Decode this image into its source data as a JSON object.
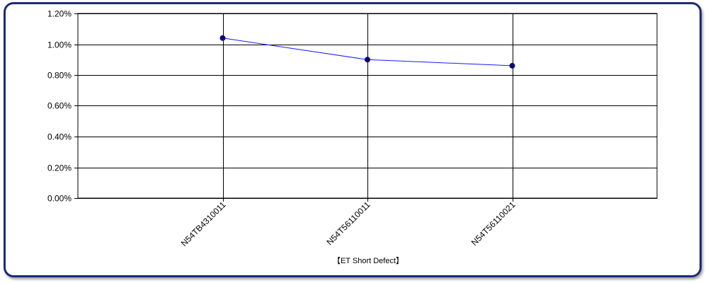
{
  "chart_data": {
    "type": "line",
    "title": "",
    "xlabel": "【ET Short Defect】",
    "ylabel": "",
    "categories": [
      "N54TB4310011",
      "N54T56110011",
      "N54T56110021"
    ],
    "series": [
      {
        "values": [
          0.0104,
          0.009,
          0.0086
        ],
        "color": "#1a1aff",
        "marker_color": "#0a0a7a"
      }
    ],
    "y_ticks": [
      "0.00%",
      "0.20%",
      "0.40%",
      "0.60%",
      "0.80%",
      "1.00%",
      "1.20%"
    ],
    "ylim": [
      0,
      0.012
    ],
    "y_format": "percent",
    "grid": true,
    "legend": "none",
    "frame_color": "#1c2b78",
    "grid_color": "#000000"
  }
}
